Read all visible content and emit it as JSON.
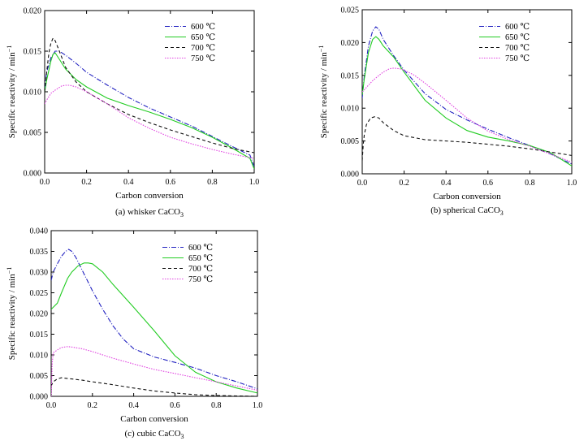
{
  "chart_data": [
    {
      "type": "line",
      "caption": "(a) whisker CaCO",
      "caption_sub": "3",
      "xlabel": "Carbon conversion",
      "ylabel": "Specific reactivity / min",
      "ylabel_sup": "−1",
      "xlim": [
        0,
        1.0
      ],
      "ylim": [
        0,
        0.02
      ],
      "xticks": [
        "0.0",
        "0.2",
        "0.4",
        "0.6",
        "0.8",
        "1.0"
      ],
      "xtick_values": [
        0,
        0.2,
        0.4,
        0.6,
        0.8,
        1.0
      ],
      "yticks": [
        "0.000",
        "0.005",
        "0.010",
        "0.015",
        "0.020"
      ],
      "ytick_values": [
        0,
        0.005,
        0.01,
        0.015,
        0.02
      ],
      "legend_position": "top-right",
      "grid": false,
      "series": [
        {
          "name": "600 ℃",
          "color": "#2020c0",
          "dash": "6 2 1 2",
          "x": [
            0,
            0.01,
            0.03,
            0.05,
            0.07,
            0.1,
            0.15,
            0.2,
            0.3,
            0.4,
            0.5,
            0.6,
            0.7,
            0.8,
            0.9,
            0.98,
            1.0
          ],
          "y": [
            0.0105,
            0.0125,
            0.0142,
            0.015,
            0.015,
            0.0145,
            0.0135,
            0.0124,
            0.0108,
            0.0093,
            0.008,
            0.0069,
            0.0058,
            0.0045,
            0.0032,
            0.0022,
            0.0008
          ]
        },
        {
          "name": "650 ℃",
          "color": "#22cc22",
          "dash": "",
          "x": [
            0,
            0.01,
            0.03,
            0.04,
            0.05,
            0.07,
            0.1,
            0.15,
            0.2,
            0.3,
            0.4,
            0.5,
            0.6,
            0.7,
            0.8,
            0.9,
            0.98,
            1.0
          ],
          "y": [
            0.01,
            0.0115,
            0.0138,
            0.0146,
            0.0148,
            0.014,
            0.0128,
            0.0115,
            0.0106,
            0.0092,
            0.0083,
            0.0075,
            0.0066,
            0.0056,
            0.0044,
            0.003,
            0.0018,
            0.0005
          ]
        },
        {
          "name": "700 ℃",
          "color": "#111111",
          "dash": "4 3",
          "x": [
            0,
            0.01,
            0.02,
            0.03,
            0.04,
            0.05,
            0.07,
            0.1,
            0.15,
            0.2,
            0.3,
            0.4,
            0.5,
            0.6,
            0.7,
            0.8,
            0.9,
            1.0
          ],
          "y": [
            0.01,
            0.0125,
            0.0148,
            0.016,
            0.0166,
            0.0163,
            0.015,
            0.013,
            0.0112,
            0.01,
            0.0085,
            0.0072,
            0.0062,
            0.0053,
            0.0045,
            0.0037,
            0.003,
            0.0025
          ]
        },
        {
          "name": "750 ℃",
          "color": "#e040e0",
          "dash": "1.5 1.5",
          "x": [
            0,
            0.01,
            0.03,
            0.05,
            0.08,
            0.1,
            0.12,
            0.15,
            0.2,
            0.3,
            0.4,
            0.5,
            0.6,
            0.7,
            0.8,
            0.9,
            1.0
          ],
          "y": [
            0.0085,
            0.009,
            0.0098,
            0.0102,
            0.0107,
            0.0108,
            0.0108,
            0.0106,
            0.01,
            0.0085,
            0.0068,
            0.0055,
            0.0044,
            0.0036,
            0.0029,
            0.0023,
            0.0018
          ]
        }
      ]
    },
    {
      "type": "line",
      "caption": "(b) spherical CaCO",
      "caption_sub": "3",
      "xlabel": "Carbon conversion",
      "ylabel": "Specific reactivity / min",
      "ylabel_sup": "−1",
      "xlim": [
        0,
        1.0
      ],
      "ylim": [
        0,
        0.025
      ],
      "xticks": [
        "0.0",
        "0.2",
        "0.4",
        "0.6",
        "0.8",
        "1.0"
      ],
      "xtick_values": [
        0,
        0.2,
        0.4,
        0.6,
        0.8,
        1.0
      ],
      "yticks": [
        "0.000",
        "0.005",
        "0.010",
        "0.015",
        "0.020",
        "0.025"
      ],
      "ytick_values": [
        0,
        0.005,
        0.01,
        0.015,
        0.02,
        0.025
      ],
      "legend_position": "top-right",
      "grid": false,
      "series": [
        {
          "name": "600 ℃",
          "color": "#2020c0",
          "dash": "6 2 1 2",
          "x": [
            0,
            0.01,
            0.03,
            0.05,
            0.065,
            0.08,
            0.1,
            0.15,
            0.2,
            0.3,
            0.4,
            0.5,
            0.6,
            0.7,
            0.8,
            0.9,
            1.0
          ],
          "y": [
            0.0115,
            0.015,
            0.0195,
            0.0218,
            0.0224,
            0.022,
            0.0205,
            0.018,
            0.0158,
            0.0122,
            0.0098,
            0.0082,
            0.0068,
            0.0055,
            0.0043,
            0.003,
            0.0015
          ]
        },
        {
          "name": "650 ℃",
          "color": "#22cc22",
          "dash": "",
          "x": [
            0,
            0.01,
            0.03,
            0.05,
            0.065,
            0.08,
            0.1,
            0.15,
            0.2,
            0.3,
            0.4,
            0.5,
            0.6,
            0.7,
            0.8,
            0.9,
            1.0
          ],
          "y": [
            0.012,
            0.0145,
            0.0185,
            0.0205,
            0.0209,
            0.0205,
            0.0195,
            0.0178,
            0.0155,
            0.0112,
            0.0085,
            0.0066,
            0.0056,
            0.005,
            0.0043,
            0.0032,
            0.0012
          ]
        },
        {
          "name": "700 ℃",
          "color": "#111111",
          "dash": "4 3",
          "x": [
            0,
            0.005,
            0.01,
            0.02,
            0.04,
            0.06,
            0.08,
            0.1,
            0.15,
            0.2,
            0.3,
            0.4,
            0.5,
            0.6,
            0.7,
            0.8,
            0.9,
            1.0
          ],
          "y": [
            0.002,
            0.0045,
            0.006,
            0.0075,
            0.0085,
            0.0087,
            0.0085,
            0.0078,
            0.0066,
            0.0058,
            0.0052,
            0.005,
            0.0048,
            0.0045,
            0.0042,
            0.0038,
            0.0033,
            0.0028
          ]
        },
        {
          "name": "750 ℃",
          "color": "#e040e0",
          "dash": "1.5 1.5",
          "x": [
            0,
            0.01,
            0.03,
            0.05,
            0.08,
            0.1,
            0.13,
            0.15,
            0.18,
            0.2,
            0.25,
            0.3,
            0.4,
            0.5,
            0.6,
            0.7,
            0.8,
            0.9,
            1.0
          ],
          "y": [
            0.0125,
            0.0128,
            0.0135,
            0.0142,
            0.015,
            0.0155,
            0.016,
            0.0161,
            0.016,
            0.0158,
            0.015,
            0.0138,
            0.0112,
            0.0085,
            0.0065,
            0.0052,
            0.0042,
            0.003,
            0.0018
          ]
        }
      ]
    },
    {
      "type": "line",
      "caption": "(c) cubic CaCO",
      "caption_sub": "3",
      "xlabel": "Carbon conversion",
      "ylabel": "Specific reactivity / min",
      "ylabel_sup": "−1",
      "xlim": [
        0,
        1.0
      ],
      "ylim": [
        0,
        0.04
      ],
      "xticks": [
        "0.0",
        "0.2",
        "0.4",
        "0.6",
        "0.8",
        "1.0"
      ],
      "xtick_values": [
        0,
        0.2,
        0.4,
        0.6,
        0.8,
        1.0
      ],
      "yticks": [
        "0.000",
        "0.005",
        "0.010",
        "0.015",
        "0.020",
        "0.025",
        "0.030",
        "0.035",
        "0.040"
      ],
      "ytick_values": [
        0,
        0.005,
        0.01,
        0.015,
        0.02,
        0.025,
        0.03,
        0.035,
        0.04
      ],
      "legend_position": "top-right",
      "grid": false,
      "series": [
        {
          "name": "600 ℃",
          "color": "#2020c0",
          "dash": "6 2 1 2",
          "x": [
            0,
            0.01,
            0.03,
            0.05,
            0.07,
            0.085,
            0.1,
            0.12,
            0.15,
            0.2,
            0.25,
            0.3,
            0.35,
            0.4,
            0.5,
            0.6,
            0.7,
            0.8,
            0.9,
            1.0
          ],
          "y": [
            0.028,
            0.03,
            0.032,
            0.0338,
            0.035,
            0.0355,
            0.035,
            0.0335,
            0.0305,
            0.0255,
            0.021,
            0.017,
            0.0138,
            0.0115,
            0.0095,
            0.0082,
            0.0068,
            0.005,
            0.0035,
            0.0018
          ]
        },
        {
          "name": "650 ℃",
          "color": "#22cc22",
          "dash": "",
          "x": [
            0,
            0.01,
            0.03,
            0.05,
            0.08,
            0.1,
            0.13,
            0.16,
            0.18,
            0.2,
            0.25,
            0.3,
            0.4,
            0.5,
            0.6,
            0.7,
            0.8,
            0.9,
            1.0
          ],
          "y": [
            0.021,
            0.0215,
            0.0225,
            0.025,
            0.0285,
            0.03,
            0.0315,
            0.0322,
            0.0322,
            0.032,
            0.03,
            0.027,
            0.0215,
            0.0158,
            0.0098,
            0.0058,
            0.0035,
            0.002,
            0.0008
          ]
        },
        {
          "name": "700 ℃",
          "color": "#111111",
          "dash": "4 3",
          "x": [
            0,
            0.01,
            0.03,
            0.05,
            0.08,
            0.1,
            0.15,
            0.2,
            0.3,
            0.4,
            0.5,
            0.6,
            0.7,
            0.8,
            0.9,
            1.0
          ],
          "y": [
            0.0025,
            0.0035,
            0.0042,
            0.0045,
            0.0043,
            0.0042,
            0.0039,
            0.0035,
            0.0028,
            0.002,
            0.0013,
            0.0008,
            0.0004,
            0.0002,
            0.0001,
            0.0
          ]
        },
        {
          "name": "750 ℃",
          "color": "#e040e0",
          "dash": "1.5 1.5",
          "x": [
            0,
            0.005,
            0.01,
            0.03,
            0.05,
            0.08,
            0.1,
            0.15,
            0.2,
            0.3,
            0.4,
            0.5,
            0.6,
            0.7,
            0.8,
            0.9,
            1.0
          ],
          "y": [
            0.0,
            0.008,
            0.0105,
            0.0112,
            0.0118,
            0.012,
            0.0119,
            0.0115,
            0.0108,
            0.0092,
            0.0078,
            0.0065,
            0.0055,
            0.0045,
            0.0035,
            0.0025,
            0.0015
          ]
        }
      ]
    }
  ]
}
